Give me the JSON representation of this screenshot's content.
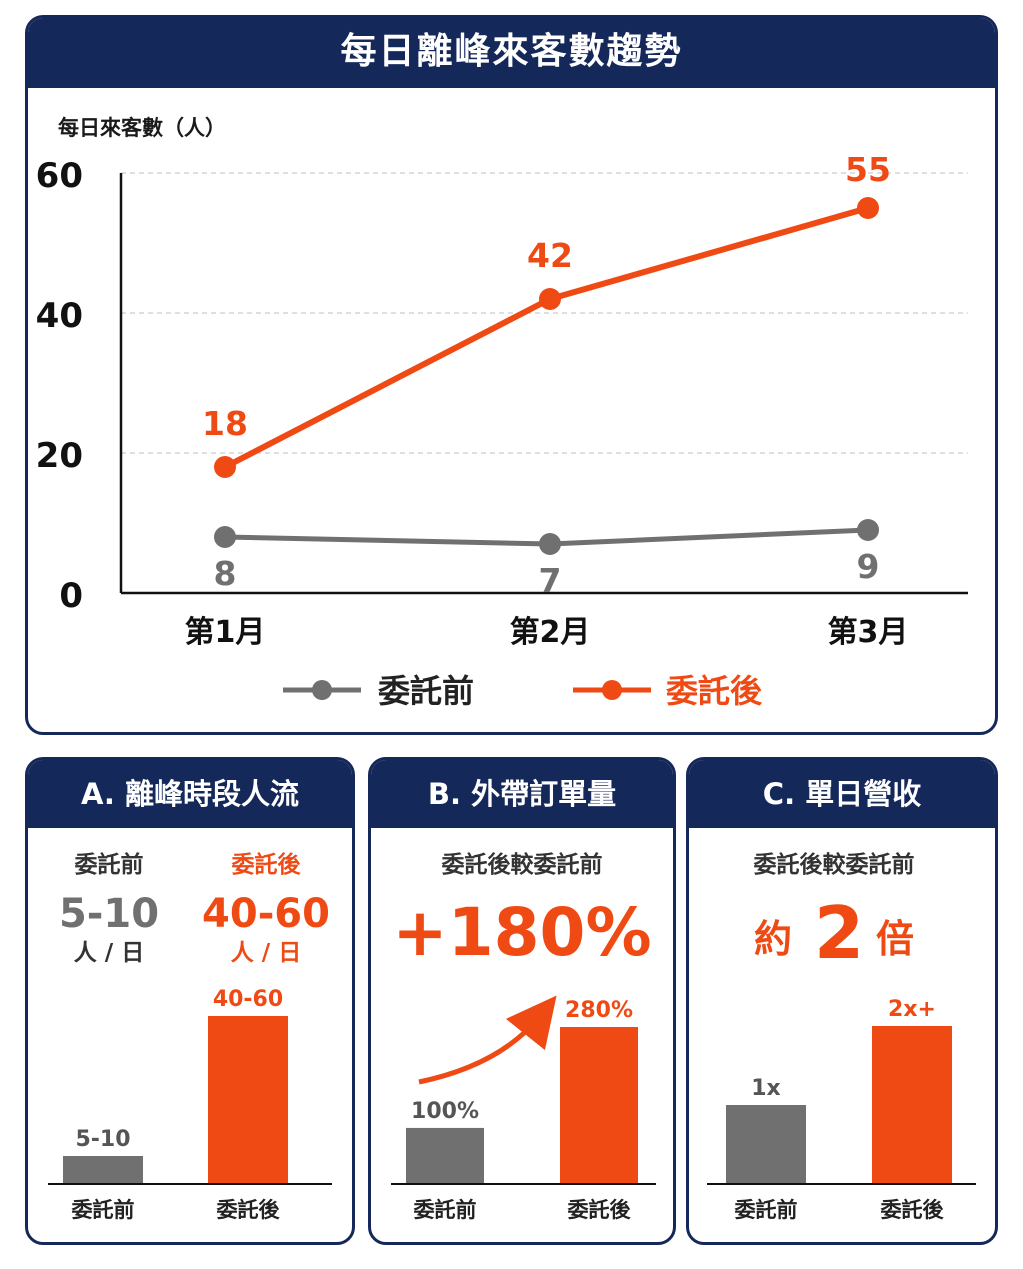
{
  "main": {
    "title": "每日離峰來客數趨勢",
    "y_axis_label": "每日來客數（人）"
  },
  "chart_data": {
    "type": "line",
    "title": "每日離峰來客數趨勢",
    "ylabel": "每日來客數（人）",
    "xlabel": "",
    "categories": [
      "第1月",
      "第2月",
      "第3月"
    ],
    "y_ticks": [
      0,
      20,
      40,
      60
    ],
    "ylim": [
      0,
      60
    ],
    "grid": true,
    "legend_position": "bottom",
    "series": [
      {
        "name": "委託前",
        "values": [
          8,
          7,
          9
        ],
        "value_labels": [
          "8",
          "7",
          "9"
        ],
        "color": "#707070"
      },
      {
        "name": "委託後",
        "values": [
          18,
          42,
          55
        ],
        "value_labels": [
          "18",
          "42",
          "55"
        ],
        "color": "#f04a14"
      }
    ]
  },
  "panels": {
    "a": {
      "title": "A. 離峰時段人流",
      "before_label": "委託前",
      "before_value": "5-10",
      "before_unit": "人 / 日",
      "after_label": "委託後",
      "after_value": "40-60",
      "after_unit": "人 / 日",
      "bars": [
        {
          "category": "委託前",
          "value": 7.5,
          "label": "5-10",
          "color": "#707070"
        },
        {
          "category": "委託後",
          "value": 50,
          "label": "40-60",
          "color": "#f04a14"
        }
      ]
    },
    "b": {
      "title": "B. 外帶訂單量",
      "subtitle": "委託後較委託前",
      "headline": "+180%",
      "bars": [
        {
          "category": "委託前",
          "value": 100,
          "label": "100%",
          "color": "#707070"
        },
        {
          "category": "委託後",
          "value": 280,
          "label": "280%",
          "color": "#f04a14"
        }
      ]
    },
    "c": {
      "title": "C. 單日營收",
      "subtitle": "委託後較委託前",
      "headline_prefix": "約",
      "headline_value": "2",
      "headline_suffix": "倍",
      "bars": [
        {
          "category": "委託前",
          "value": 1,
          "label": "1x",
          "color": "#707070"
        },
        {
          "category": "委託後",
          "value": 2,
          "label": "2x+",
          "color": "#f04a14"
        }
      ]
    }
  },
  "colors": {
    "navy": "#14285a",
    "before": "#707070",
    "after": "#f04a14",
    "grid": "#cccccc"
  }
}
